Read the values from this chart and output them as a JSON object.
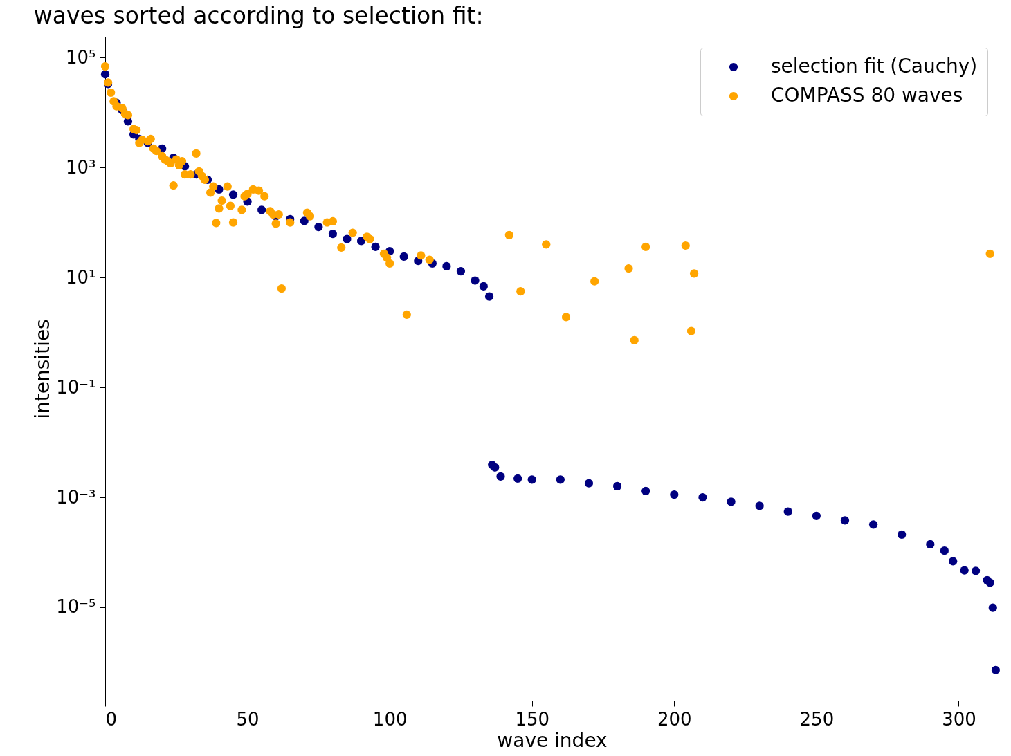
{
  "chart_data": {
    "type": "scatter",
    "title": "waves sorted according to selection fit:",
    "xlabel": "wave index",
    "ylabel": "intensities",
    "log": "y",
    "marker": "circle",
    "grid": false,
    "legend": "top right",
    "xlim": [
      0,
      314
    ],
    "xticks": [
      0,
      50,
      100,
      150,
      200,
      250,
      300
    ],
    "ylim": [
      2e-07,
      240000
    ],
    "yticks": [
      {
        "value": 100000,
        "label": "10⁵"
      },
      {
        "value": 1000,
        "label": "10³"
      },
      {
        "value": 10,
        "label": "10¹"
      },
      {
        "value": 0.1,
        "label": "10⁻¹"
      },
      {
        "value": 0.001,
        "label": "10⁻³"
      },
      {
        "value": 1e-05,
        "label": "10⁻⁵"
      }
    ],
    "series": [
      {
        "name": "selection fit (Cauchy)",
        "color": "#000080",
        "x": [
          0,
          1,
          2,
          4,
          6,
          8,
          10,
          12,
          15,
          20,
          24,
          28,
          32,
          36,
          40,
          45,
          50,
          55,
          60,
          65,
          70,
          75,
          80,
          85,
          90,
          95,
          100,
          105,
          110,
          115,
          120,
          125,
          130,
          133,
          135,
          136,
          137,
          139,
          145,
          150,
          160,
          170,
          180,
          190,
          200,
          210,
          220,
          230,
          240,
          250,
          260,
          270,
          280,
          290,
          295,
          298,
          302,
          306,
          310,
          311,
          312,
          313
        ],
        "values": [
          50000,
          33000,
          null,
          15000,
          11000,
          6900,
          4000,
          3300,
          2800,
          2200,
          1500,
          1050,
          750,
          600,
          400,
          320,
          240,
          170,
          130,
          115,
          107,
          83,
          62,
          50,
          46,
          36,
          30,
          24,
          20,
          18,
          16,
          13,
          8.8,
          6.9,
          4.5,
          0.0039,
          0.0035,
          0.0024,
          0.0022,
          0.0021,
          0.0021,
          0.0018,
          0.0016,
          0.0013,
          0.00112,
          0.001,
          0.00083,
          0.0007,
          0.00055,
          0.00046,
          0.00038,
          0.00032,
          0.00021,
          0.00014,
          0.000107,
          6.9e-05,
          4.7e-05,
          4.6e-05,
          3.1e-05,
          2.8e-05,
          9.8e-06,
          7.2e-07
        ]
      },
      {
        "name": "COMPASS 80 waves",
        "color": "#ffa500",
        "x": [
          0,
          1,
          2,
          3,
          4,
          6,
          7,
          8,
          10,
          11,
          12,
          13,
          15,
          16,
          17,
          18,
          20,
          21,
          22,
          23,
          24,
          25,
          26,
          27,
          28,
          30,
          32,
          33,
          34,
          35,
          37,
          38,
          39,
          40,
          41,
          43,
          44,
          45,
          48,
          49,
          50,
          52,
          54,
          56,
          58,
          59,
          60,
          61,
          62,
          65,
          71,
          72,
          78,
          80,
          83,
          87,
          92,
          93,
          98,
          99,
          100,
          106,
          111,
          114,
          142,
          146,
          155,
          162,
          172,
          184,
          186,
          190,
          204,
          206,
          207,
          311
        ],
        "values": [
          69000,
          35000,
          23000,
          16000,
          13000,
          12000,
          9500,
          9000,
          5000,
          4800,
          2800,
          3200,
          3000,
          3300,
          2200,
          2000,
          1600,
          1400,
          1300,
          1200,
          470,
          1400,
          1100,
          1300,
          750,
          750,
          1800,
          850,
          700,
          600,
          350,
          450,
          98,
          180,
          250,
          450,
          200,
          100,
          170,
          300,
          330,
          400,
          380,
          300,
          160,
          140,
          95,
          140,
          6.3,
          100,
          150,
          130,
          100,
          105,
          35,
          65,
          55,
          50,
          27,
          23,
          18,
          2.1,
          25,
          21,
          59,
          5.6,
          40,
          1.9,
          8.5,
          14.6,
          0.72,
          36,
          38,
          1.06,
          11.8,
          27
        ]
      }
    ]
  }
}
